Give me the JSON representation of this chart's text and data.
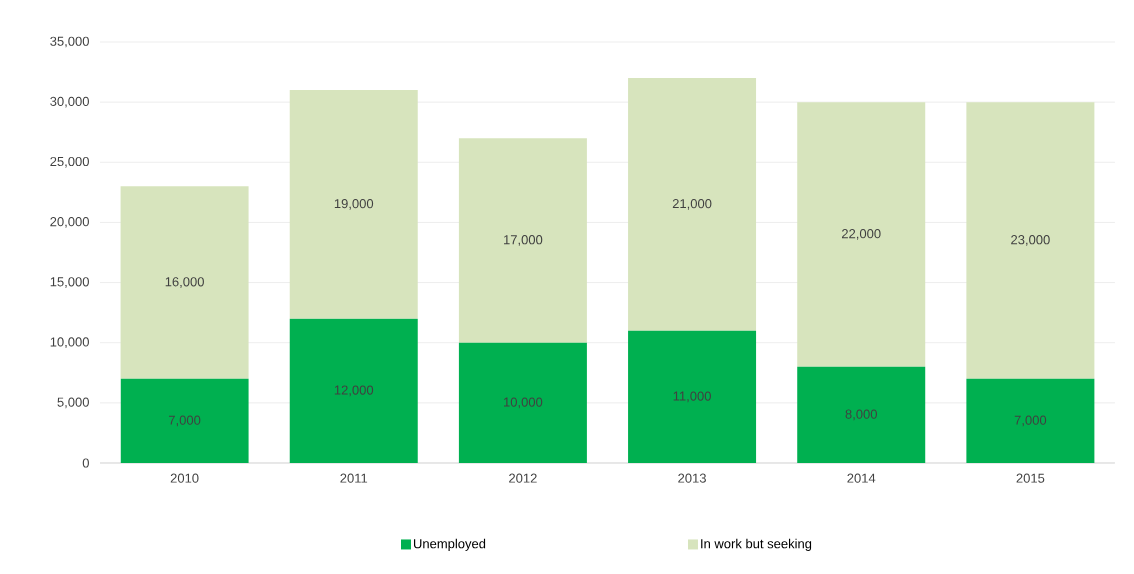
{
  "chart_data": {
    "type": "bar",
    "stacked": true,
    "categories": [
      "2010",
      "2011",
      "2012",
      "2013",
      "2014",
      "2015"
    ],
    "series": [
      {
        "name": "Unemployed",
        "color": "#00b050",
        "values": [
          7000,
          12000,
          10000,
          11000,
          8000,
          7000
        ],
        "value_labels": [
          "7,000",
          "12,000",
          "10,000",
          "11,000",
          "8,000",
          "7,000"
        ]
      },
      {
        "name": "In work but seeking",
        "color": "#d7e4bd",
        "values": [
          16000,
          19000,
          17000,
          21000,
          22000,
          23000
        ],
        "value_labels": [
          "16,000",
          "19,000",
          "17,000",
          "21,000",
          "22,000",
          "23,000"
        ]
      }
    ],
    "ylim": [
      0,
      35000
    ],
    "yticks": [
      0,
      {
        "value": 5000,
        "label": "5,000"
      },
      {
        "value": 10000,
        "label": "10,000"
      },
      {
        "value": 15000,
        "label": "15,000"
      },
      {
        "value": 20000,
        "label": "20,000"
      },
      {
        "value": 25000,
        "label": "25,000"
      },
      {
        "value": 30000,
        "label": "30,000"
      },
      {
        "value": 35000,
        "label": "35,000"
      }
    ],
    "grid": "y",
    "legend": "bottom"
  }
}
